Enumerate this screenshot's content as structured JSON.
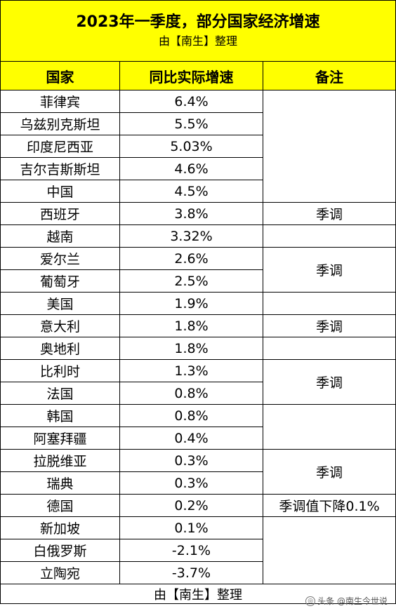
{
  "title": "2023年一季度，部分国家经济增速",
  "subtitle": "由【南生】整理",
  "headers": [
    "国家",
    "同比实际增速",
    "备注"
  ],
  "rows": [
    {
      "country": "菲律宾",
      "growth": "6.4%"
    },
    {
      "country": "乌兹别克斯坦",
      "growth": "5.5%"
    },
    {
      "country": "印度尼西亚",
      "growth": "5.03%"
    },
    {
      "country": "吉尔吉斯斯坦",
      "growth": "4.6%"
    },
    {
      "country": "中国",
      "growth": "4.5%"
    },
    {
      "country": "西班牙",
      "growth": "3.8%"
    },
    {
      "country": "越南",
      "growth": "3.32%"
    },
    {
      "country": "爱尔兰",
      "growth": "2.6%"
    },
    {
      "country": "葡萄牙",
      "growth": "2.5%"
    },
    {
      "country": "美国",
      "growth": "1.9%"
    },
    {
      "country": "意大利",
      "growth": "1.8%"
    },
    {
      "country": "奥地利",
      "growth": "1.8%"
    },
    {
      "country": "比利时",
      "growth": "1.3%"
    },
    {
      "country": "法国",
      "growth": "0.8%"
    },
    {
      "country": "韩国",
      "growth": "0.8%"
    },
    {
      "country": "阿塞拜疆",
      "growth": "0.4%"
    },
    {
      "country": "拉脱维亚",
      "growth": "0.3%"
    },
    {
      "country": "瑞典",
      "growth": "0.3%"
    },
    {
      "country": "德国",
      "growth": "0.2%"
    },
    {
      "country": "新加坡",
      "growth": "0.1%"
    },
    {
      "country": "白俄罗斯",
      "growth": "-2.1%"
    },
    {
      "country": "立陶宛",
      "growth": "-3.7%"
    }
  ],
  "notes": {
    "seasonal": "季调",
    "germany": "季调值下降0.1%"
  },
  "footer": "由【南生】整理",
  "watermark": "头条 @南生今世说"
}
